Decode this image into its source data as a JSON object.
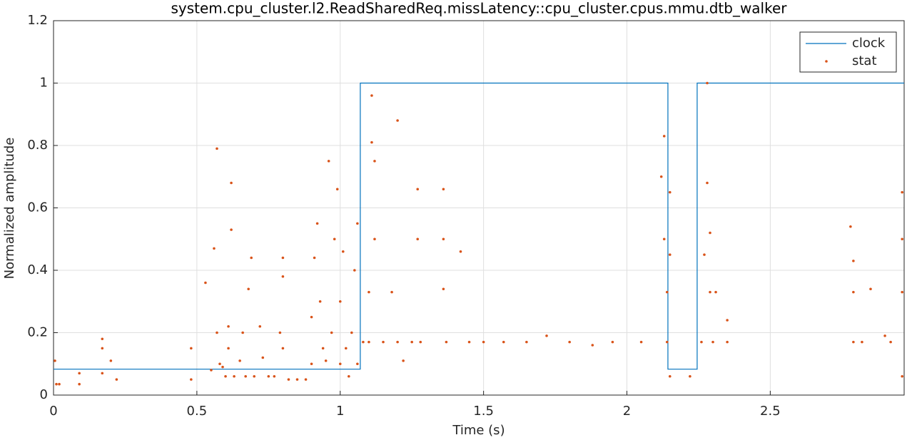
{
  "chart_data": {
    "type": "line",
    "title": "system.cpu_cluster.l2.ReadSharedReq.missLatency::cpu_cluster.cpus.mmu.dtb_walker",
    "x_label": "Time (s)",
    "y_label": "Normalized amplitude",
    "xlim": [
      0,
      2.967
    ],
    "ylim": [
      0,
      1.2
    ],
    "xticks": [
      0,
      0.5,
      1,
      1.5,
      2,
      2.5
    ],
    "yticks": [
      0,
      0.2,
      0.4,
      0.6,
      0.8,
      1,
      1.2
    ],
    "grid": true,
    "legend": "upper right",
    "series": [
      {
        "name": "clock",
        "type": "line",
        "color": "#0072bd",
        "x": [
          0,
          1.07,
          1.07,
          2.143,
          2.143,
          2.245,
          2.245,
          2.967
        ],
        "values": [
          0.083,
          0.083,
          1,
          1,
          0.083,
          0.083,
          1,
          1
        ]
      },
      {
        "name": "stat",
        "type": "scatter",
        "color": "#d95319",
        "x": [
          0.005,
          0.01,
          0.02,
          0.09,
          0.09,
          0.17,
          0.17,
          0.17,
          0.2,
          0.22,
          0.48,
          0.48,
          0.53,
          0.55,
          0.56,
          0.57,
          0.57,
          0.58,
          0.59,
          0.6,
          0.61,
          0.61,
          0.62,
          0.62,
          0.63,
          0.65,
          0.66,
          0.67,
          0.68,
          0.69,
          0.7,
          0.72,
          0.73,
          0.75,
          0.77,
          0.79,
          0.8,
          0.8,
          0.8,
          0.82,
          0.85,
          0.88,
          0.9,
          0.9,
          0.91,
          0.92,
          0.93,
          0.94,
          0.95,
          0.96,
          0.97,
          0.98,
          0.99,
          1.0,
          1.0,
          1.01,
          1.02,
          1.03,
          1.04,
          1.05,
          1.06,
          1.06,
          1.08,
          1.1,
          1.1,
          1.11,
          1.11,
          1.12,
          1.12,
          1.15,
          1.18,
          1.2,
          1.2,
          1.22,
          1.25,
          1.27,
          1.27,
          1.28,
          1.36,
          1.36,
          1.36,
          1.37,
          1.42,
          1.45,
          1.5,
          1.57,
          1.65,
          1.72,
          1.8,
          1.88,
          1.95,
          2.05,
          2.12,
          2.13,
          2.13,
          2.14,
          2.14,
          2.15,
          2.15,
          2.15,
          2.22,
          2.26,
          2.27,
          2.28,
          2.28,
          2.29,
          2.29,
          2.3,
          2.31,
          2.35,
          2.35,
          2.78,
          2.79,
          2.79,
          2.79,
          2.82,
          2.85,
          2.9,
          2.92,
          2.96,
          2.96,
          2.96,
          2.96
        ],
        "values": [
          0.11,
          0.035,
          0.035,
          0.07,
          0.035,
          0.18,
          0.15,
          0.07,
          0.11,
          0.05,
          0.15,
          0.05,
          0.36,
          0.08,
          0.47,
          0.79,
          0.2,
          0.1,
          0.09,
          0.06,
          0.15,
          0.22,
          0.68,
          0.53,
          0.06,
          0.11,
          0.2,
          0.06,
          0.34,
          0.44,
          0.06,
          0.22,
          0.12,
          0.06,
          0.06,
          0.2,
          0.44,
          0.38,
          0.15,
          0.05,
          0.05,
          0.05,
          0.1,
          0.25,
          0.44,
          0.55,
          0.3,
          0.15,
          0.11,
          0.75,
          0.2,
          0.5,
          0.66,
          0.1,
          0.3,
          0.46,
          0.15,
          0.06,
          0.2,
          0.4,
          0.1,
          0.55,
          0.17,
          0.33,
          0.17,
          0.96,
          0.81,
          0.5,
          0.75,
          0.17,
          0.33,
          0.88,
          0.17,
          0.11,
          0.17,
          0.66,
          0.5,
          0.17,
          0.66,
          0.5,
          0.34,
          0.17,
          0.46,
          0.17,
          0.17,
          0.17,
          0.17,
          0.19,
          0.17,
          0.16,
          0.17,
          0.17,
          0.7,
          0.83,
          0.5,
          0.33,
          0.17,
          0.06,
          0.65,
          0.45,
          0.06,
          0.17,
          0.45,
          1.0,
          0.68,
          0.33,
          0.52,
          0.17,
          0.33,
          0.24,
          0.17,
          0.54,
          0.43,
          0.33,
          0.17,
          0.17,
          0.34,
          0.19,
          0.17,
          0.65,
          0.5,
          0.33,
          0.06
        ]
      }
    ]
  }
}
